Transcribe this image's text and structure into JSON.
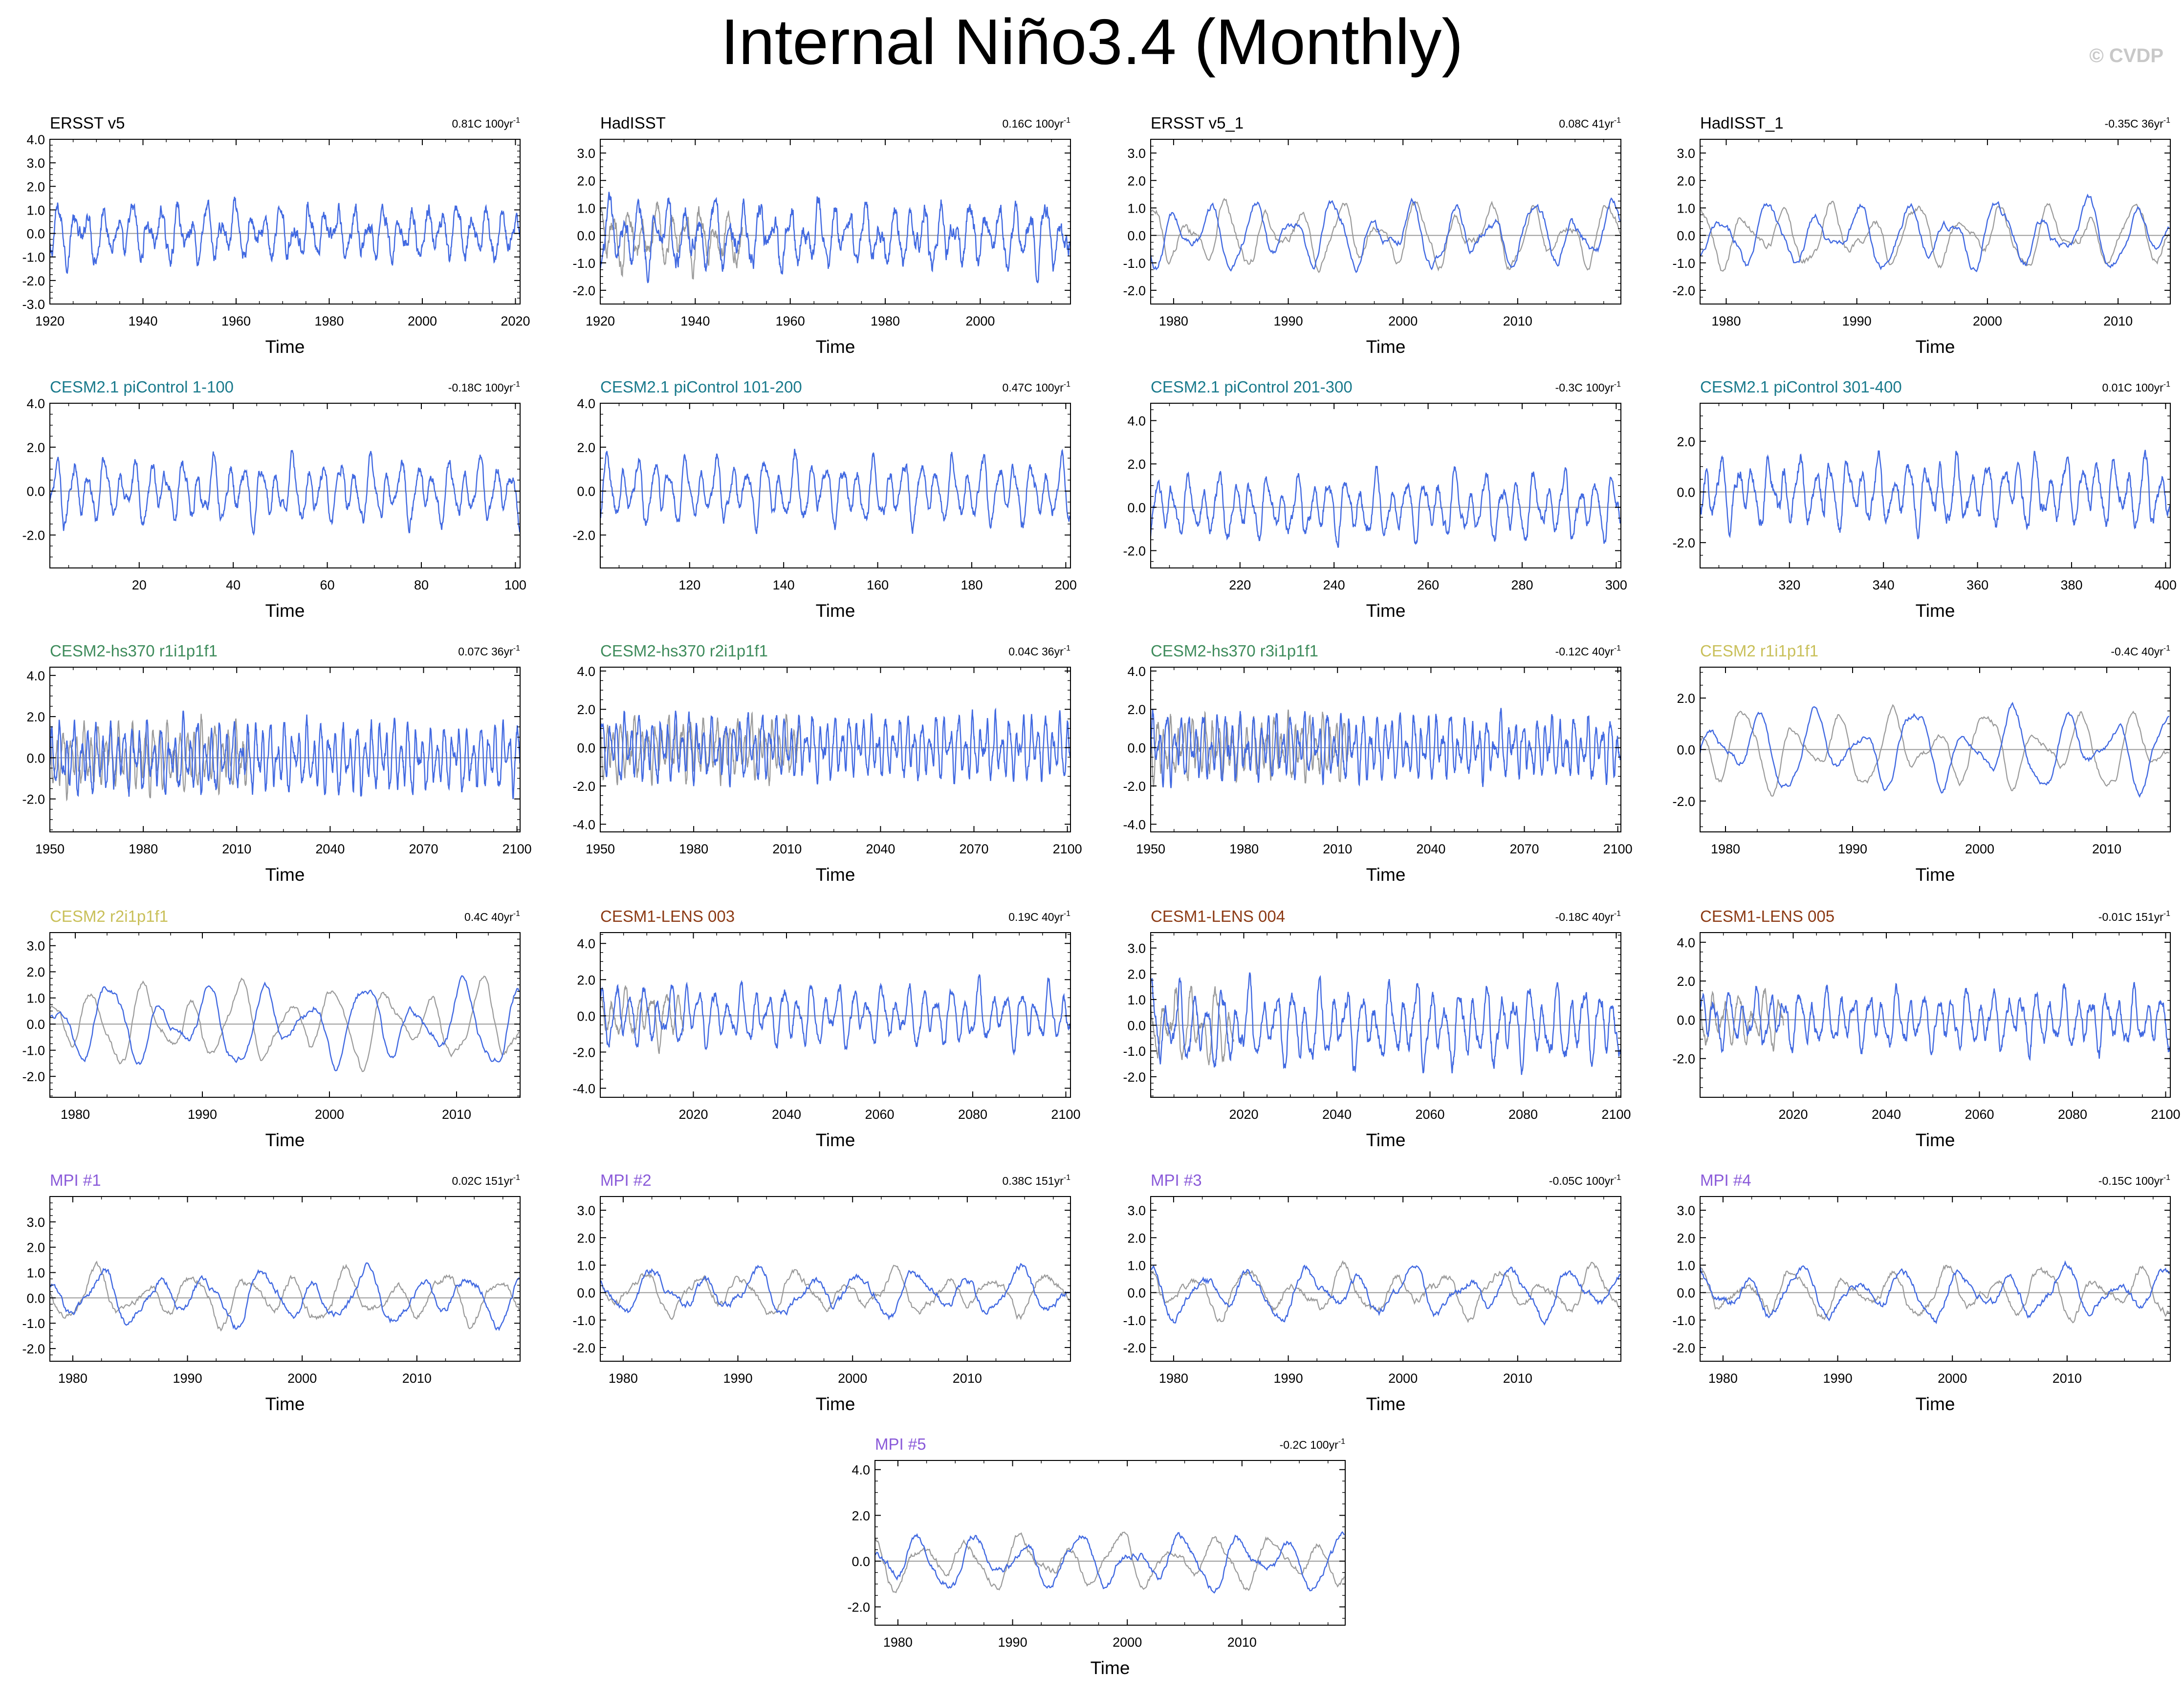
{
  "figure": {
    "title": "Internal Niño3.4 (Monthly)",
    "watermark": "© CVDP",
    "colors": {
      "model": "#4169e1",
      "obs": "#9a9a9a",
      "axis": "#000000",
      "zero": "#9a9a9a"
    }
  },
  "chart_data": [
    {
      "type": "line",
      "title": "ERSST v5",
      "title_color": "#000000",
      "trend": "0.81C 100yr",
      "trend_exp": "-1",
      "xlabel": "Time",
      "x_range": [
        1920,
        2021
      ],
      "x_ticks": [
        1920,
        1940,
        1960,
        1980,
        2000,
        2020
      ],
      "ylim": [
        -3,
        4
      ],
      "y_ticks": [
        -3,
        -2,
        -1,
        0,
        1,
        2,
        3,
        4
      ],
      "y_format": 1,
      "obs_overlay": false,
      "amp": 0.85,
      "period": 38,
      "noise": 0.45
    },
    {
      "type": "line",
      "title": "HadISST",
      "title_color": "#000000",
      "trend": "0.16C 100yr",
      "trend_exp": "-1",
      "xlabel": "Time",
      "x_range": [
        1920,
        2019
      ],
      "x_ticks": [
        1920,
        1940,
        1960,
        1980,
        2000
      ],
      "ylim": [
        -2.5,
        3.5
      ],
      "y_ticks": [
        -2,
        -1,
        0,
        1,
        2,
        3
      ],
      "y_format": 1,
      "obs_overlay": true,
      "obs_until": 1950,
      "amp": 0.85,
      "period": 38,
      "noise": 0.45
    },
    {
      "type": "line",
      "title": "ERSST v5_1",
      "title_color": "#000000",
      "trend": "0.08C 41yr",
      "trend_exp": "-1",
      "xlabel": "Time",
      "x_range": [
        1978,
        2019
      ],
      "x_ticks": [
        1980,
        1990,
        2000,
        2010
      ],
      "ylim": [
        -2.5,
        3.5
      ],
      "y_ticks": [
        -2,
        -1,
        0,
        1,
        2,
        3
      ],
      "y_format": 1,
      "obs_overlay": true,
      "amp": 0.9,
      "period": 42,
      "noise": 0.2
    },
    {
      "type": "line",
      "title": "HadISST_1",
      "title_color": "#000000",
      "trend": "-0.35C 36yr",
      "trend_exp": "-1",
      "xlabel": "Time",
      "x_range": [
        1978,
        2014
      ],
      "x_ticks": [
        1980,
        1990,
        2000,
        2010
      ],
      "ylim": [
        -2.5,
        3.5
      ],
      "y_ticks": [
        -2,
        -1,
        0,
        1,
        2,
        3
      ],
      "y_format": 1,
      "obs_overlay": true,
      "amp": 0.9,
      "period": 42,
      "noise": 0.2
    },
    {
      "type": "line",
      "title": "CESM2.1 piControl 1-100",
      "title_color": "#1a7a8c",
      "trend": "-0.18C 100yr",
      "trend_exp": "-1",
      "xlabel": "Time",
      "x_range": [
        1,
        101
      ],
      "x_ticks": [
        20,
        40,
        60,
        80,
        100
      ],
      "ylim": [
        -3.5,
        4
      ],
      "y_ticks": [
        -2,
        0,
        2,
        4
      ],
      "y_format": 1,
      "obs_overlay": false,
      "amp": 1.1,
      "period": 40,
      "noise": 0.35
    },
    {
      "type": "line",
      "title": "CESM2.1 piControl 101-200",
      "title_color": "#1a7a8c",
      "trend": "0.47C 100yr",
      "trend_exp": "-1",
      "xlabel": "Time",
      "x_range": [
        101,
        201
      ],
      "x_ticks": [
        120,
        140,
        160,
        180,
        200
      ],
      "ylim": [
        -3.5,
        4
      ],
      "y_ticks": [
        -2,
        0,
        2,
        4
      ],
      "y_format": 1,
      "obs_overlay": false,
      "amp": 1.1,
      "period": 40,
      "noise": 0.35
    },
    {
      "type": "line",
      "title": "CESM2.1 piControl 201-300",
      "title_color": "#1a7a8c",
      "trend": "-0.3C 100yr",
      "trend_exp": "-1",
      "xlabel": "Time",
      "x_range": [
        201,
        301
      ],
      "x_ticks": [
        220,
        240,
        260,
        280,
        300
      ],
      "ylim": [
        -2.8,
        4.8
      ],
      "y_ticks": [
        -2,
        0,
        2,
        4
      ],
      "y_format": 1,
      "obs_overlay": false,
      "amp": 1.1,
      "period": 40,
      "noise": 0.35
    },
    {
      "type": "line",
      "title": "CESM2.1 piControl 301-400",
      "title_color": "#1a7a8c",
      "trend": "0.01C 100yr",
      "trend_exp": "-1",
      "xlabel": "Time",
      "x_range": [
        301,
        401
      ],
      "x_ticks": [
        320,
        340,
        360,
        380,
        400
      ],
      "ylim": [
        -3,
        3.5
      ],
      "y_ticks": [
        -2,
        0,
        2
      ],
      "y_format": 1,
      "obs_overlay": false,
      "amp": 1.0,
      "period": 40,
      "noise": 0.35
    },
    {
      "type": "line",
      "title": "CESM2-hs370 r1i1p1f1",
      "title_color": "#3f8c5c",
      "trend": "0.07C 36yr",
      "trend_exp": "-1",
      "xlabel": "Time",
      "x_range": [
        1950,
        2101
      ],
      "x_ticks": [
        1950,
        1980,
        2010,
        2040,
        2070,
        2100
      ],
      "ylim": [
        -3.6,
        4.4
      ],
      "y_ticks": [
        -2,
        0,
        2,
        4
      ],
      "y_format": 1,
      "obs_overlay": true,
      "obs_until": 2014,
      "amp": 1.2,
      "period": 28,
      "noise": 0.45
    },
    {
      "type": "line",
      "title": "CESM2-hs370 r2i1p1f1",
      "title_color": "#3f8c5c",
      "trend": "0.04C 36yr",
      "trend_exp": "-1",
      "xlabel": "Time",
      "x_range": [
        1950,
        2101
      ],
      "x_ticks": [
        1950,
        1980,
        2010,
        2040,
        2070,
        2100
      ],
      "ylim": [
        -4.4,
        4.2
      ],
      "y_ticks": [
        -4,
        -2,
        0,
        2,
        4
      ],
      "y_format": 1,
      "obs_overlay": true,
      "obs_until": 2014,
      "amp": 1.2,
      "period": 28,
      "noise": 0.45
    },
    {
      "type": "line",
      "title": "CESM2-hs370 r3i1p1f1",
      "title_color": "#3f8c5c",
      "trend": "-0.12C 40yr",
      "trend_exp": "-1",
      "xlabel": "Time",
      "x_range": [
        1950,
        2101
      ],
      "x_ticks": [
        1950,
        1980,
        2010,
        2040,
        2070,
        2100
      ],
      "ylim": [
        -4.4,
        4.2
      ],
      "y_ticks": [
        -4,
        -2,
        0,
        2,
        4
      ],
      "y_format": 1,
      "obs_overlay": true,
      "obs_until": 2014,
      "amp": 1.2,
      "period": 28,
      "noise": 0.45
    },
    {
      "type": "line",
      "title": "CESM2 r1i1p1f1",
      "title_color": "#c9c05a",
      "trend": "-0.4C 40yr",
      "trend_exp": "-1",
      "xlabel": "Time",
      "x_range": [
        1978,
        2015
      ],
      "x_ticks": [
        1980,
        1990,
        2000,
        2010
      ],
      "ylim": [
        -3.2,
        3.2
      ],
      "y_ticks": [
        -2,
        0,
        2
      ],
      "y_format": 1,
      "obs_overlay": true,
      "amp": 1.2,
      "period": 48,
      "noise": 0.18
    },
    {
      "type": "line",
      "title": "CESM2 r2i1p1f1",
      "title_color": "#c9c05a",
      "trend": "0.4C 40yr",
      "trend_exp": "-1",
      "xlabel": "Time",
      "x_range": [
        1978,
        2015
      ],
      "x_ticks": [
        1980,
        1990,
        2000,
        2010
      ],
      "ylim": [
        -2.8,
        3.5
      ],
      "y_ticks": [
        -2,
        -1,
        0,
        1,
        2,
        3
      ],
      "y_format": 1,
      "obs_overlay": true,
      "amp": 1.2,
      "period": 48,
      "noise": 0.18
    },
    {
      "type": "line",
      "title": "CESM1-LENS 003",
      "title_color": "#8c3a14",
      "trend": "0.19C 40yr",
      "trend_exp": "-1",
      "xlabel": "Time",
      "x_range": [
        2000,
        2101
      ],
      "x_ticks": [
        2020,
        2040,
        2060,
        2080,
        2100
      ],
      "ylim": [
        -4.5,
        4.6
      ],
      "y_ticks": [
        -4,
        -2,
        0,
        2,
        4
      ],
      "y_format": 1,
      "obs_overlay": true,
      "obs_until": 2018,
      "amp": 1.2,
      "period": 36,
      "noise": 0.4
    },
    {
      "type": "line",
      "title": "CESM1-LENS 004",
      "title_color": "#8c3a14",
      "trend": "-0.18C 40yr",
      "trend_exp": "-1",
      "xlabel": "Time",
      "x_range": [
        2000,
        2101
      ],
      "x_ticks": [
        2020,
        2040,
        2060,
        2080,
        2100
      ],
      "ylim": [
        -2.8,
        3.6
      ],
      "y_ticks": [
        -2,
        -1,
        0,
        1,
        2,
        3
      ],
      "y_format": 1,
      "obs_overlay": true,
      "obs_until": 2018,
      "amp": 1.1,
      "period": 36,
      "noise": 0.4
    },
    {
      "type": "line",
      "title": "CESM1-LENS 005",
      "title_color": "#8c3a14",
      "trend": "-0.01C 151yr",
      "trend_exp": "-1",
      "xlabel": "Time",
      "x_range": [
        2000,
        2101
      ],
      "x_ticks": [
        2020,
        2040,
        2060,
        2080,
        2100
      ],
      "ylim": [
        -4,
        4.5
      ],
      "y_ticks": [
        -2,
        0,
        2,
        4
      ],
      "y_format": 1,
      "obs_overlay": true,
      "obs_until": 2018,
      "amp": 1.1,
      "period": 36,
      "noise": 0.4
    },
    {
      "type": "line",
      "title": "MPI #1",
      "title_color": "#8a5ad9",
      "trend": "0.02C 151yr",
      "trend_exp": "-1",
      "xlabel": "Time",
      "x_range": [
        1978,
        2019
      ],
      "x_ticks": [
        1980,
        1990,
        2000,
        2010
      ],
      "ylim": [
        -2.5,
        4
      ],
      "y_ticks": [
        -2,
        -1,
        0,
        1,
        2,
        3
      ],
      "y_format": 1,
      "obs_overlay": true,
      "amp": 0.8,
      "period": 55,
      "noise": 0.2
    },
    {
      "type": "line",
      "title": "MPI #2",
      "title_color": "#8a5ad9",
      "trend": "0.38C 151yr",
      "trend_exp": "-1",
      "xlabel": "Time",
      "x_range": [
        1978,
        2019
      ],
      "x_ticks": [
        1980,
        1990,
        2000,
        2010
      ],
      "ylim": [
        -2.5,
        3.5
      ],
      "y_ticks": [
        -2,
        -1,
        0,
        1,
        2,
        3
      ],
      "y_format": 1,
      "obs_overlay": true,
      "amp": 0.6,
      "period": 55,
      "noise": 0.2
    },
    {
      "type": "line",
      "title": "MPI #3",
      "title_color": "#8a5ad9",
      "trend": "-0.05C 100yr",
      "trend_exp": "-1",
      "xlabel": "Time",
      "x_range": [
        1978,
        2019
      ],
      "x_ticks": [
        1980,
        1990,
        2000,
        2010
      ],
      "ylim": [
        -2.5,
        3.5
      ],
      "y_ticks": [
        -2,
        -1,
        0,
        1,
        2,
        3
      ],
      "y_format": 1,
      "obs_overlay": true,
      "amp": 0.7,
      "period": 55,
      "noise": 0.2
    },
    {
      "type": "line",
      "title": "MPI #4",
      "title_color": "#8a5ad9",
      "trend": "-0.15C 100yr",
      "trend_exp": "-1",
      "xlabel": "Time",
      "x_range": [
        1978,
        2019
      ],
      "x_ticks": [
        1980,
        1990,
        2000,
        2010
      ],
      "ylim": [
        -2.5,
        3.5
      ],
      "y_ticks": [
        -2,
        -1,
        0,
        1,
        2,
        3
      ],
      "y_format": 1,
      "obs_overlay": true,
      "amp": 0.7,
      "period": 55,
      "noise": 0.2
    },
    {
      "type": "line",
      "title": "MPI #5",
      "title_color": "#8a5ad9",
      "trend": "-0.2C 100yr",
      "trend_exp": "-1",
      "xlabel": "Time",
      "x_range": [
        1978,
        2019
      ],
      "x_ticks": [
        1980,
        1990,
        2000,
        2010
      ],
      "ylim": [
        -2.8,
        4.4
      ],
      "y_ticks": [
        -2,
        0,
        2,
        4
      ],
      "y_format": 1,
      "obs_overlay": true,
      "amp": 0.9,
      "period": 55,
      "noise": 0.22
    }
  ]
}
